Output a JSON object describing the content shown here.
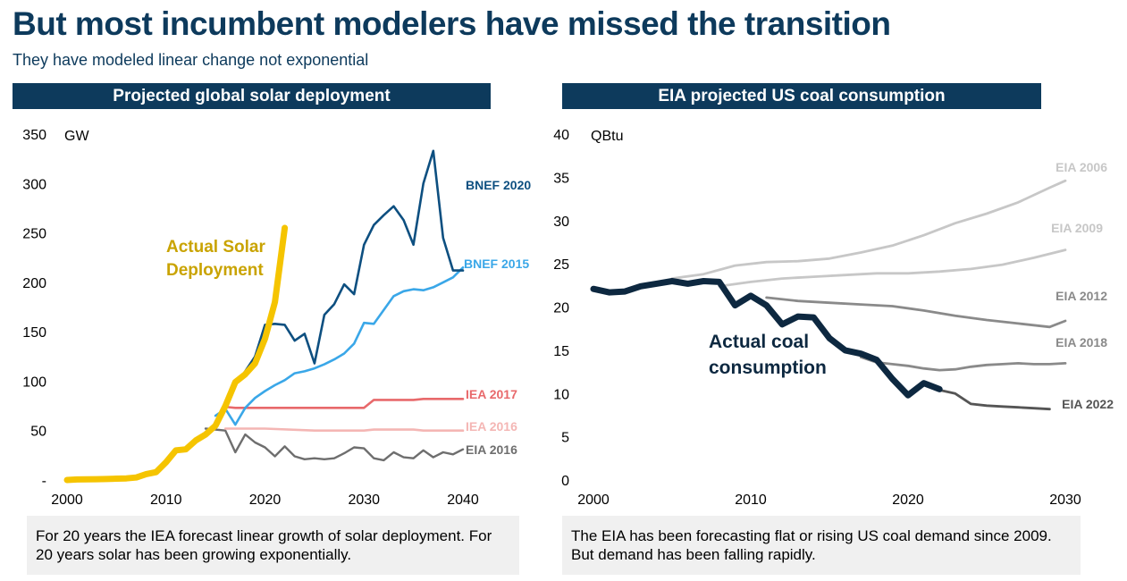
{
  "title": "But most incumbent modelers have missed the transition",
  "subtitle": "They have modeled linear change not exponential",
  "colors": {
    "header_bg": "#0d3a5c",
    "bnef2020": "#0d4f80",
    "bnef2015": "#3aa7e8",
    "iea2017": "#e8696b",
    "iea2016_light": "#f4b6b4",
    "iea2016_grey": "#6e6e6e",
    "actual_solar": "#f5c400",
    "actual_solar_label": "#c9a300",
    "eia2006": "#c7c7c7",
    "eia2009": "#c7c7c7",
    "eia2012": "#8a8a8a",
    "eia2018": "#8a8a8a",
    "eia2022": "#555555",
    "actual_coal": "#0d2840"
  },
  "left_panel": {
    "header": "Projected global solar deployment",
    "note": "For 20 years the IEA forecast linear growth of solar deployment. For 20 years solar has been growing exponentially."
  },
  "right_panel": {
    "header": "EIA projected US coal consumption",
    "note": "The EIA has been forecasting flat or rising US coal demand since 2009. But demand has been falling rapidly."
  },
  "chart_data": [
    {
      "type": "line",
      "title": "Projected global solar deployment",
      "ylabel": "GW",
      "xlim": [
        2000,
        2040
      ],
      "ylim": [
        0,
        350
      ],
      "x_ticks": [
        "2000",
        "2010",
        "2020",
        "2030",
        "2040"
      ],
      "y_ticks": [
        "-",
        "50",
        "100",
        "150",
        "200",
        "250",
        "300",
        "350"
      ],
      "grid": false,
      "series": [
        {
          "name": "EIA 2016",
          "key": "iea2016_grey",
          "x": [
            2014,
            2016,
            2017,
            2018,
            2019,
            2020,
            2021,
            2022,
            2023,
            2024,
            2025,
            2026,
            2027,
            2028,
            2029,
            2030,
            2031,
            2032,
            2033,
            2034,
            2035,
            2036,
            2037,
            2038,
            2039,
            2040
          ],
          "y": [
            52,
            50,
            28,
            46,
            38,
            33,
            24,
            34,
            24,
            21,
            22,
            21,
            22,
            27,
            33,
            32,
            22,
            20,
            28,
            23,
            22,
            30,
            23,
            28,
            26,
            31
          ]
        },
        {
          "name": "IEA 2016",
          "key": "iea2016_light",
          "x": [
            2016,
            2020,
            2025,
            2030,
            2031,
            2035,
            2036,
            2040
          ],
          "y": [
            52,
            52,
            50,
            50,
            51,
            51,
            50,
            50
          ]
        },
        {
          "name": "IEA 2017",
          "key": "iea2017",
          "x": [
            2016,
            2017,
            2020,
            2025,
            2030,
            2031,
            2035,
            2036,
            2040
          ],
          "y": [
            74,
            73,
            73,
            73,
            73,
            81,
            81,
            82,
            82
          ]
        },
        {
          "name": "BNEF 2015",
          "key": "bnef2015",
          "x": [
            2015,
            2016,
            2017,
            2018,
            2019,
            2020,
            2021,
            2022,
            2023,
            2024,
            2025,
            2026,
            2027,
            2028,
            2029,
            2030,
            2031,
            2032,
            2033,
            2034,
            2035,
            2036,
            2037,
            2038,
            2039,
            2040
          ],
          "y": [
            65,
            72,
            56,
            73,
            83,
            90,
            96,
            101,
            108,
            110,
            113,
            117,
            122,
            128,
            138,
            159,
            158,
            172,
            186,
            191,
            193,
            192,
            195,
            200,
            205,
            215
          ]
        },
        {
          "name": "BNEF 2020",
          "key": "bnef2020",
          "x": [
            2015,
            2016,
            2017,
            2018,
            2019,
            2020,
            2021,
            2022,
            2023,
            2024,
            2025,
            2026,
            2027,
            2028,
            2029,
            2030,
            2031,
            2032,
            2033,
            2034,
            2035,
            2036,
            2037,
            2038,
            2039,
            2040
          ],
          "y": [
            55,
            75,
            97,
            110,
            125,
            157,
            158,
            157,
            141,
            148,
            118,
            167,
            178,
            198,
            188,
            238,
            258,
            268,
            277,
            263,
            238,
            300,
            333,
            245,
            212,
            212
          ]
        },
        {
          "name": "Actual Solar Deployment",
          "key": "actual_solar",
          "x": [
            2000,
            2001,
            2002,
            2003,
            2004,
            2005,
            2006,
            2007,
            2008,
            2009,
            2010,
            2011,
            2012,
            2013,
            2014,
            2015,
            2016,
            2017,
            2018,
            2019,
            2020,
            2021,
            2022
          ],
          "y": [
            0,
            0.5,
            0.6,
            0.8,
            1,
            1.4,
            1.6,
            2.5,
            6,
            8,
            18,
            30,
            31,
            40,
            46,
            55,
            75,
            99,
            107,
            118,
            143,
            180,
            255
          ]
        }
      ]
    },
    {
      "type": "line",
      "title": "EIA projected US coal consumption",
      "ylabel": "QBtu",
      "xlim": [
        2000,
        2030
      ],
      "ylim": [
        0,
        40
      ],
      "x_ticks": [
        "2000",
        "2010",
        "2020",
        "2030"
      ],
      "y_ticks": [
        "0",
        "5",
        "10",
        "15",
        "20",
        "25",
        "30",
        "35",
        "40"
      ],
      "grid": false,
      "series": [
        {
          "name": "EIA 2006",
          "key": "eia2006",
          "x": [
            2005,
            2007,
            2009,
            2011,
            2013,
            2015,
            2017,
            2019,
            2021,
            2023,
            2025,
            2027,
            2029,
            2030
          ],
          "y": [
            23.3,
            23.8,
            24.8,
            25.2,
            25.3,
            25.6,
            26.3,
            27.1,
            28.3,
            29.7,
            30.8,
            32.1,
            33.8,
            34.6
          ]
        },
        {
          "name": "EIA 2009",
          "key": "eia2009",
          "x": [
            2008,
            2010,
            2012,
            2014,
            2016,
            2018,
            2020,
            2022,
            2024,
            2026,
            2028,
            2030
          ],
          "y": [
            22.4,
            22.9,
            23.3,
            23.5,
            23.7,
            23.9,
            23.9,
            24.1,
            24.4,
            24.9,
            25.7,
            26.6
          ]
        },
        {
          "name": "EIA 2012",
          "key": "eia2012",
          "x": [
            2011,
            2013,
            2015,
            2017,
            2019,
            2021,
            2023,
            2025,
            2027,
            2029,
            2030
          ],
          "y": [
            21.1,
            20.7,
            20.5,
            20.3,
            20.1,
            19.6,
            19.0,
            18.5,
            18.1,
            17.7,
            18.4
          ]
        },
        {
          "name": "EIA 2018",
          "key": "eia2018",
          "x": [
            2017,
            2018,
            2019,
            2020,
            2021,
            2022,
            2023,
            2024,
            2025,
            2026,
            2027,
            2028,
            2029,
            2030
          ],
          "y": [
            14.2,
            13.6,
            13.4,
            13.2,
            12.9,
            12.7,
            12.8,
            13.1,
            13.3,
            13.4,
            13.5,
            13.4,
            13.4,
            13.5
          ]
        },
        {
          "name": "EIA 2022",
          "key": "eia2022",
          "x": [
            2021,
            2022,
            2023,
            2024,
            2025,
            2026,
            2027,
            2028,
            2029
          ],
          "y": [
            11.0,
            10.4,
            10.0,
            8.8,
            8.6,
            8.5,
            8.4,
            8.3,
            8.2
          ]
        },
        {
          "name": "Actual coal consumption",
          "key": "actual_coal",
          "x": [
            2000,
            2001,
            2002,
            2003,
            2004,
            2005,
            2006,
            2007,
            2008,
            2009,
            2010,
            2011,
            2012,
            2013,
            2014,
            2015,
            2016,
            2017,
            2018,
            2019,
            2020,
            2021,
            2022
          ],
          "y": [
            22.1,
            21.7,
            21.8,
            22.4,
            22.7,
            23.0,
            22.7,
            23.0,
            22.9,
            20.2,
            21.3,
            20.2,
            18.0,
            18.9,
            18.8,
            16.4,
            15.0,
            14.6,
            13.9,
            11.7,
            9.8,
            11.2,
            10.5
          ]
        }
      ]
    }
  ]
}
